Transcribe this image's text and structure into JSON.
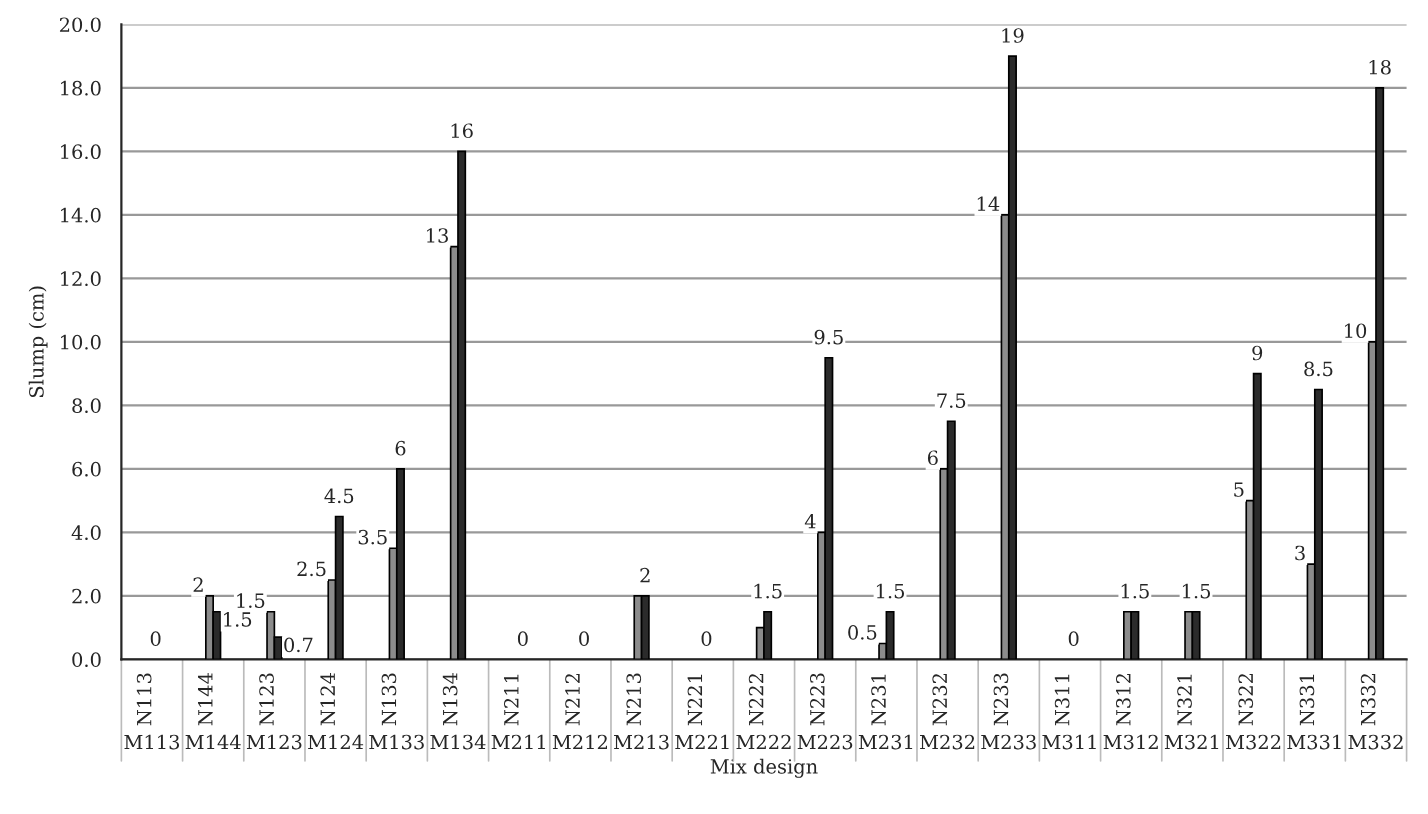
{
  "chart_data": {
    "type": "bar",
    "xlabel": "Mix design",
    "ylabel": "Slump (cm)",
    "categories": [
      "M113\nN113",
      "M144\nN144",
      "M123\nN123",
      "M124\nN124",
      "M133\nN133",
      "M134\nN134",
      "M211\nN211",
      "M212\nN212",
      "M213\nN213",
      "M221\nN221",
      "M222\nN222",
      "M223\nN223",
      "M231\nN231",
      "M232\nN232",
      "M233\nN233",
      "M311\nN311",
      "M312\nN312",
      "M321\nN321",
      "M322\nN322",
      "M331\nN331",
      "M332\nN332"
    ],
    "series": [
      {
        "color": "#8c8c8c",
        "values": [
          0,
          2,
          1.5,
          2.5,
          3.5,
          13,
          0,
          0,
          2,
          0,
          1,
          4,
          0.5,
          6,
          14,
          0,
          1.5,
          1.5,
          5,
          3,
          10
        ],
        "value_labels": [
          null,
          "2",
          "1.5",
          "2.5",
          "3.5",
          "13",
          null,
          null,
          null,
          null,
          null,
          "4",
          "0.5",
          "6",
          "14",
          null,
          null,
          null,
          "5",
          "3",
          "10"
        ]
      },
      {
        "color": "#2b2b2b",
        "values": [
          0,
          1.5,
          0.7,
          4.5,
          6,
          16,
          0,
          0,
          2,
          0,
          1.5,
          9.5,
          1.5,
          7.5,
          19,
          0,
          1.5,
          1.5,
          9,
          8.5,
          18
        ],
        "value_labels": [
          "0",
          "1.5",
          "0.7",
          "4.5",
          "6",
          "16",
          "0",
          "0",
          "2",
          "0",
          "1.5",
          "9.5",
          "1.5",
          "7.5",
          "19",
          "0",
          "1.5",
          "1.5",
          "9",
          "8.5",
          "18"
        ]
      }
    ],
    "ylim": [
      0,
      20
    ],
    "yticks": [
      {
        "value": 0,
        "label": "0.0"
      },
      {
        "value": 2,
        "label": "2.0"
      },
      {
        "value": 4,
        "label": "4.0"
      },
      {
        "value": 6,
        "label": "6.0"
      },
      {
        "value": 8,
        "label": "8.0"
      },
      {
        "value": 10,
        "label": "10.0"
      },
      {
        "value": 12,
        "label": "12.0"
      },
      {
        "value": 14,
        "label": "14.0"
      },
      {
        "value": 16,
        "label": "16.0"
      },
      {
        "value": 18,
        "label": "18.0"
      },
      {
        "value": 20,
        "label": "20.0"
      }
    ],
    "grid": "y",
    "legend": false
  }
}
